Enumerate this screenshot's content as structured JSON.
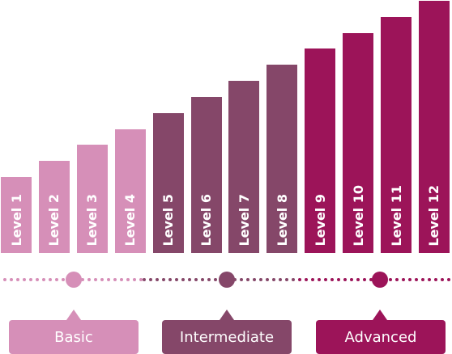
{
  "colors": {
    "basic": "#d68fb8",
    "intermediate": "#854769",
    "advanced": "#9c1459"
  },
  "chart_data": {
    "type": "bar",
    "categories": [
      "Level 1",
      "Level 2",
      "Level 3",
      "Level 4",
      "Level 5",
      "Level 6",
      "Level 7",
      "Level 8",
      "Level 9",
      "Level 10",
      "Level 11",
      "Level 12"
    ],
    "values": [
      1,
      2,
      3,
      4,
      5,
      6,
      7,
      8,
      9,
      10,
      11,
      12
    ],
    "series_tier": [
      "basic",
      "basic",
      "basic",
      "basic",
      "intermediate",
      "intermediate",
      "intermediate",
      "intermediate",
      "advanced",
      "advanced",
      "advanced",
      "advanced"
    ]
  },
  "tiers": [
    {
      "key": "basic",
      "label": "Basic"
    },
    {
      "key": "intermediate",
      "label": "Intermediate"
    },
    {
      "key": "advanced",
      "label": "Advanced"
    }
  ]
}
